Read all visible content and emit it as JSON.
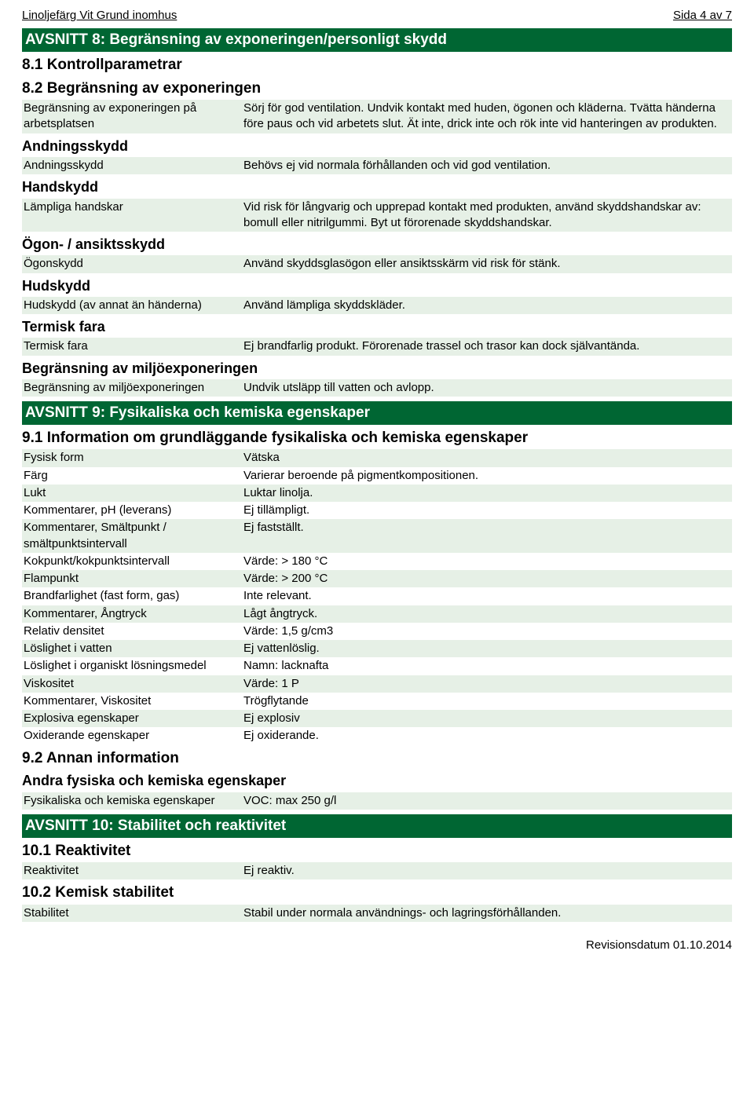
{
  "colors": {
    "section_bg": "#006633",
    "section_fg": "#ffffff",
    "shade_bg": "#e6f0e6",
    "body_bg": "#ffffff",
    "text": "#000000"
  },
  "header": {
    "left": "Linoljefärg Vit Grund inomhus",
    "right": "Sida 4 av 7"
  },
  "s8": {
    "title": "AVSNITT 8: Begränsning av exponeringen/personligt skydd",
    "sub1": "8.1 Kontrollparametrar",
    "sub2": "8.2 Begränsning av exponeringen",
    "row1_k": "Begränsning av exponeringen på arbetsplatsen",
    "row1_v": "Sörj för god ventilation. Undvik kontakt med huden, ögonen och kläderna. Tvätta händerna före paus och vid arbetets slut. Ät inte, drick inte och rök inte vid hanteringen av produkten.",
    "g_andning": "Andningsskydd",
    "andning_k": "Andningsskydd",
    "andning_v": "Behövs ej vid normala förhållanden och vid god ventilation.",
    "g_hand": "Handskydd",
    "hand_k": "Lämpliga handskar",
    "hand_v": "Vid risk för långvarig och upprepad kontakt med produkten, använd skyddshandskar av: bomull eller nitrilgummi. Byt ut förorenade skyddshandskar.",
    "g_ogon": "Ögon- / ansiktsskydd",
    "ogon_k": "Ögonskydd",
    "ogon_v": "Använd skyddsglasögon eller ansiktsskärm vid risk för stänk.",
    "g_hud": "Hudskydd",
    "hud_k": "Hudskydd (av annat än händerna)",
    "hud_v": "Använd lämpliga skyddskläder.",
    "g_termisk": "Termisk fara",
    "termisk_k": "Termisk fara",
    "termisk_v": "Ej brandfarlig produkt. Förorenade trassel och trasor kan dock självantända.",
    "g_miljo": "Begränsning av miljöexponeringen",
    "miljo_k": "Begränsning av miljöexponeringen",
    "miljo_v": "Undvik utsläpp till vatten och avlopp."
  },
  "s9": {
    "title": "AVSNITT 9: Fysikaliska och kemiska egenskaper",
    "sub1": "9.1 Information om grundläggande fysikaliska och kemiska egenskaper",
    "rows": [
      {
        "k": "Fysisk form",
        "v": "Vätska",
        "shade": true
      },
      {
        "k": "Färg",
        "v": "Varierar beroende på pigmentkompositionen.",
        "shade": false
      },
      {
        "k": "Lukt",
        "v": "Luktar linolja.",
        "shade": true
      },
      {
        "k": "Kommentarer, pH (leverans)",
        "v": "Ej tillämpligt.",
        "shade": false
      },
      {
        "k": "Kommentarer, Smältpunkt / smältpunktsintervall",
        "v": "Ej fastställt.",
        "shade": true
      },
      {
        "k": "Kokpunkt/kokpunktsintervall",
        "v": "Värde: > 180 °C",
        "shade": false
      },
      {
        "k": "Flampunkt",
        "v": "Värde: > 200 °C",
        "shade": true
      },
      {
        "k": "Brandfarlighet (fast form, gas)",
        "v": "Inte relevant.",
        "shade": false
      },
      {
        "k": "Kommentarer, Ångtryck",
        "v": "Lågt ångtryck.",
        "shade": true
      },
      {
        "k": "Relativ densitet",
        "v": "Värde: 1,5 g/cm3",
        "shade": false
      },
      {
        "k": "Löslighet i vatten",
        "v": "Ej vattenlöslig.",
        "shade": true
      },
      {
        "k": "Löslighet i organiskt lösningsmedel",
        "v": "Namn: lacknafta",
        "shade": false
      },
      {
        "k": "Viskositet",
        "v": "Värde: 1 P",
        "shade": true
      },
      {
        "k": "Kommentarer, Viskositet",
        "v": "Trögflytande",
        "shade": false
      },
      {
        "k": "Explosiva egenskaper",
        "v": "Ej explosiv",
        "shade": true
      },
      {
        "k": "Oxiderande egenskaper",
        "v": "Ej oxiderande.",
        "shade": false
      }
    ],
    "sub2": "9.2 Annan information",
    "sub3": "Andra fysiska och kemiska egenskaper",
    "voc_k": "Fysikaliska och kemiska egenskaper",
    "voc_v": "VOC: max 250 g/l"
  },
  "s10": {
    "title": "AVSNITT 10: Stabilitet och reaktivitet",
    "sub1": "10.1 Reaktivitet",
    "react_k": "Reaktivitet",
    "react_v": "Ej reaktiv.",
    "sub2": "10.2 Kemisk stabilitet",
    "stab_k": "Stabilitet",
    "stab_v": "Stabil under normala användnings- och lagringsförhållanden."
  },
  "footer": "Revisionsdatum 01.10.2014"
}
